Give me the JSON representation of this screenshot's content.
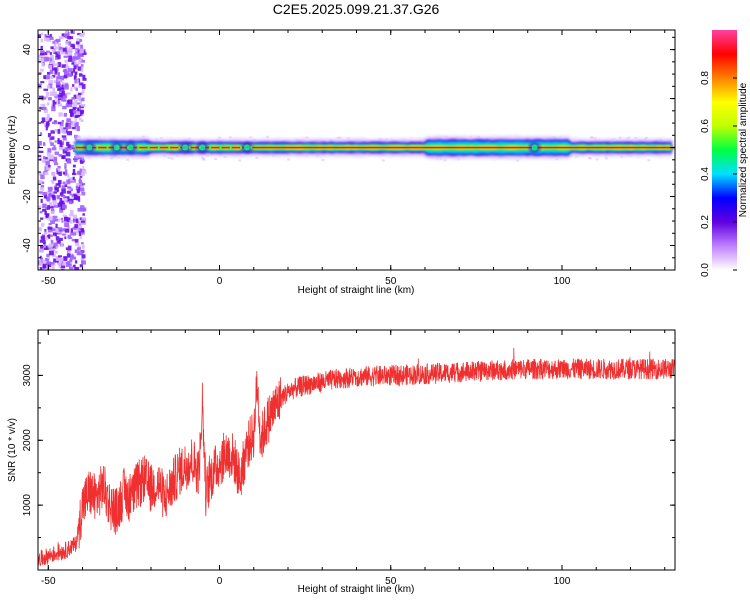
{
  "title": "C2E5.2025.099.21.37.G26",
  "chart_data": [
    {
      "type": "heatmap",
      "xlabel": "Height of straight line (km)",
      "ylabel": "Frequency (Hz)",
      "xlim": [
        -53,
        133
      ],
      "ylim": [
        -50,
        48
      ],
      "xticks": [
        -50,
        0,
        50,
        100
      ],
      "yticks": [
        -40,
        -20,
        0,
        20,
        40
      ],
      "ridge_frequency_hz": 0,
      "colorbar": {
        "label": "Normalized spectral amplitude",
        "range": [
          0,
          1
        ],
        "ticks": [
          "0.0",
          "0.2",
          "0.4",
          "0.6",
          "0.8"
        ],
        "colors": [
          "#ffffff",
          "#c080ff",
          "#6000e0",
          "#0000ff",
          "#00e0ff",
          "#00ff40",
          "#c0ff00",
          "#ffff00",
          "#ff8000",
          "#ff0000",
          "#ff40a0"
        ]
      }
    },
    {
      "type": "line",
      "xlabel": "Height of straight line (km)",
      "ylabel": "SNR (10 * v/v)",
      "xlim": [
        -53,
        133
      ],
      "ylim": [
        0,
        3700
      ],
      "xticks": [
        -50,
        0,
        50,
        100
      ],
      "yticks": [
        1000,
        2000,
        3000
      ],
      "color": "#f03030",
      "x": [
        -53,
        -50,
        -45,
        -42,
        -40,
        -38,
        -36,
        -34,
        -32,
        -30,
        -28,
        -26,
        -24,
        -22,
        -20,
        -18,
        -16,
        -14,
        -12,
        -10,
        -8,
        -6,
        -5,
        -4,
        -2,
        0,
        2,
        4,
        6,
        8,
        10,
        11,
        12,
        14,
        16,
        18,
        20,
        22,
        25,
        30,
        35,
        40,
        50,
        60,
        70,
        80,
        90,
        100,
        110,
        120,
        133
      ],
      "y": [
        150,
        220,
        300,
        400,
        1000,
        1200,
        1100,
        1300,
        1000,
        900,
        1200,
        1100,
        1300,
        1400,
        1250,
        1350,
        1100,
        1300,
        1500,
        1600,
        1700,
        1500,
        2600,
        1200,
        1500,
        1650,
        1800,
        1750,
        1400,
        1900,
        2100,
        2900,
        2000,
        2300,
        2500,
        2650,
        2750,
        2800,
        2850,
        2900,
        2950,
        2980,
        3000,
        3020,
        3050,
        3080,
        3100,
        3100,
        3100,
        3100,
        3100
      ]
    }
  ]
}
